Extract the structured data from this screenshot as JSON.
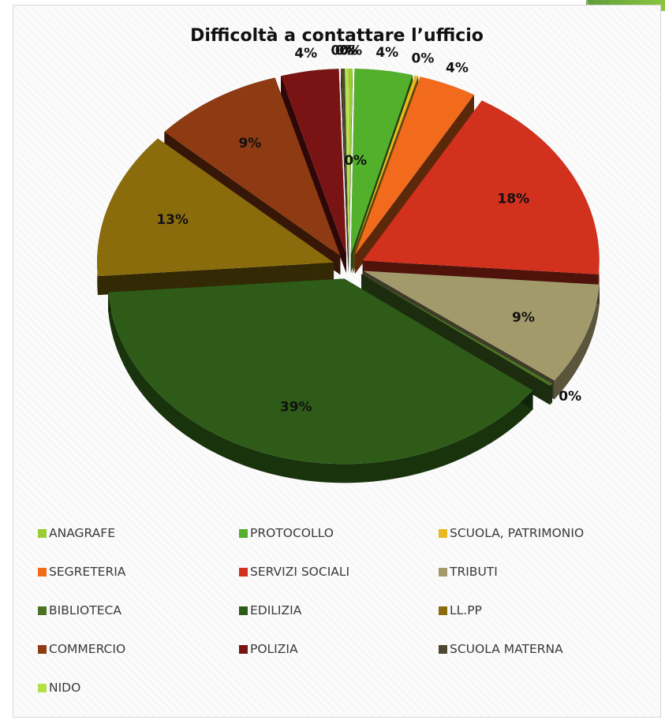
{
  "chart_data": {
    "type": "pie",
    "title": "Difficoltà a contattare l’ufficio",
    "legend_position": "bottom",
    "slices": [
      {
        "label": "ANAGRAFE",
        "value": 0,
        "display": "0%",
        "color": "#9acd32"
      },
      {
        "label": "PROTOCOLLO",
        "value": 4,
        "display": "4%",
        "color": "#52b02a"
      },
      {
        "label": "SCUOLA, PATRIMONIO",
        "value": 0,
        "display": "0%",
        "color": "#e8b820"
      },
      {
        "label": "SEGRETERIA",
        "value": 4,
        "display": "4%",
        "color": "#f26a1b"
      },
      {
        "label": "SERVIZI SOCIALI",
        "value": 18,
        "display": "18%",
        "color": "#d2311e"
      },
      {
        "label": "TRIBUTI",
        "value": 9,
        "display": "9%",
        "color": "#a39a6c"
      },
      {
        "label": "BIBLIOTECA",
        "value": 0,
        "display": "0%",
        "color": "#4a7424"
      },
      {
        "label": "EDILIZIA",
        "value": 39,
        "display": "39%",
        "color": "#2e5c18"
      },
      {
        "label": "LL.PP",
        "value": 13,
        "display": "13%",
        "color": "#8a6c0c"
      },
      {
        "label": "COMMERCIO",
        "value": 9,
        "display": "9%",
        "color": "#8e3a12"
      },
      {
        "label": "POLIZIA",
        "value": 4,
        "display": "4%",
        "color": "#7a1414"
      },
      {
        "label": "SCUOLA MATERNA",
        "value": 0,
        "display": "0%",
        "color": "#4d4630"
      },
      {
        "label": "NIDO",
        "value": 0,
        "display": "0%",
        "color": "#b5e04a"
      }
    ],
    "extra_label": "0%"
  }
}
